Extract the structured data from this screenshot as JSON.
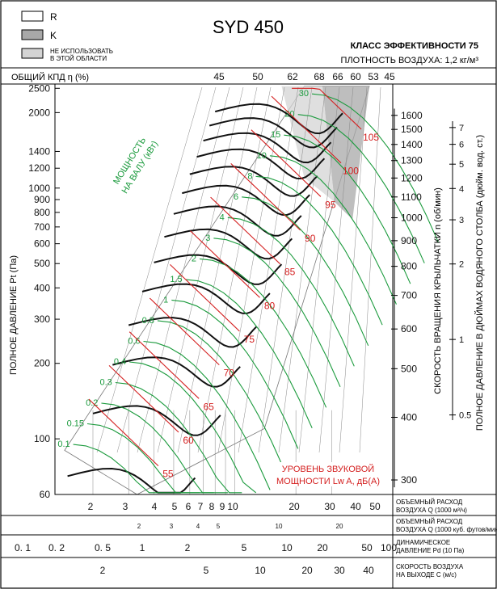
{
  "title": "SYD 450",
  "legend": [
    {
      "key": "R",
      "label": "R",
      "fill": "#ffffff"
    },
    {
      "key": "K",
      "label": "K",
      "fill": "#a8a8a8"
    },
    {
      "key": "na",
      "label_lines": [
        "НЕ ИСПОЛЬЗОВАТЬ",
        "В ЭТОЙ ОБЛАСТИ"
      ],
      "fill": "#d4d4d4"
    }
  ],
  "efficiency_class": "КЛАСС ЭФФЕКТИВНОСТИ 75",
  "air_density": "ПЛОТНОСТЬ ВОЗДУХА: 1,2 кг/м³",
  "efficiency_axis_label": "ОБЩИЙ КПД η (%)",
  "efficiency_ticks": [
    "45",
    "50",
    "62",
    "68",
    "66",
    "60",
    "53",
    "45"
  ],
  "left_axis_label": "ПОЛНОЕ ДАВЛЕНИЕ Pt (Па)",
  "left_ticks": [
    "2500",
    "2000",
    "1400",
    "1200",
    "1000",
    "900",
    "800",
    "700",
    "600",
    "500",
    "400",
    "300",
    "200",
    "100",
    "60"
  ],
  "right_axis_label": "СКОРОСТЬ ВРАЩЕНИЯ КРЫЛЬЧАТКИ n (об/мин)",
  "right_ticks": [
    "1600",
    "1500",
    "1400",
    "1300",
    "1200",
    "1100",
    "1000",
    "900",
    "800",
    "700",
    "600",
    "500",
    "400",
    "300"
  ],
  "far_right_axis_label": "ПОЛНОЕ ДАВЛЕНИЕ В ДЮЙМАХ ВОДЯНОГО СТОЛБА (дюйм. вод. ст.)",
  "far_right_ticks": [
    "7",
    "6",
    "5",
    "4",
    "3",
    "2",
    "1",
    "0.5"
  ],
  "power_label_lines": [
    "МОЩНОСТЬ",
    "НА ВАЛУ (кВт)"
  ],
  "power_labels": [
    "0.1",
    "0.15",
    "0.2",
    "0.3",
    "0.4",
    "0.6",
    "0.8",
    "1",
    "1.5",
    "2",
    "3",
    "4",
    "6",
    "8",
    "10",
    "15",
    "20",
    "30"
  ],
  "sound_label_lines": [
    "УРОВЕНЬ ЗВУКОВОЙ",
    "МОЩНОСТИ Lw A, дБ(A)"
  ],
  "sound_labels": [
    "55",
    "60",
    "65",
    "70",
    "75",
    "80",
    "85",
    "90",
    "95",
    "100",
    "105"
  ],
  "bottom_scales": [
    {
      "label_lines": [
        "ОБЪЕМНЫЙ РАСХОД",
        "ВОЗДУХА Q (1000 м³/ч)"
      ],
      "ticks": [
        "2",
        "3",
        "4",
        "5",
        "6",
        "7",
        "8",
        "9",
        "10",
        "20",
        "30",
        "40",
        "50"
      ]
    },
    {
      "label_lines": [
        "ОБЪЕМНЫЙ РАСХОД",
        "ВОЗДУХА Q (1000 куб. футов/мин)"
      ],
      "ticks": [
        "2",
        "3",
        "4",
        "5",
        "10",
        "20"
      ]
    },
    {
      "label_lines": [
        "ДИНАМИЧЕСКОЕ",
        "ДАВЛЕНИЕ Pd (10 Па)"
      ],
      "ticks": [
        "0. 1",
        "0. 2",
        "0. 5",
        "1",
        "2",
        "5",
        "10",
        "20",
        "50",
        "100"
      ]
    },
    {
      "label_lines": [
        "СКОРОСТЬ ВОЗДУХА",
        "НА ВЫХОДЕ C (м/с)"
      ],
      "ticks": [
        "2",
        "5",
        "10",
        "20",
        "30",
        "40"
      ]
    }
  ],
  "chart_data": {
    "type": "line",
    "title": "SYD 450",
    "xlabel": "ОБЪЕМНЫЙ РАСХОД ВОЗДУХА Q (1000 м³/ч)",
    "ylabel": "ПОЛНОЕ ДАВЛЕНИЕ Pt (Па)",
    "y2label": "СКОРОСТЬ ВРАЩЕНИЯ КРЫЛЬЧАТКИ n (об/мин)",
    "x_scale": "log",
    "y_scale": "log",
    "xlim": [
      1.3,
      60
    ],
    "ylim": [
      60,
      2600
    ],
    "colors": {
      "speed_curves": "#111111",
      "power_curves": "#1a9a3c",
      "sound_curves": "#d42020",
      "k_zone": "#a8a8a8",
      "na_zone": "#d4d4d4"
    },
    "speed_rpm": [
      300,
      400,
      500,
      600,
      700,
      800,
      900,
      1000,
      1100,
      1200,
      1300,
      1400,
      1500,
      1600
    ],
    "power_kw": [
      0.1,
      0.15,
      0.2,
      0.3,
      0.4,
      0.6,
      0.8,
      1,
      1.5,
      2,
      3,
      4,
      6,
      8,
      10,
      15,
      20,
      30
    ],
    "sound_dba": [
      55,
      60,
      65,
      70,
      75,
      80,
      85,
      90,
      95,
      100,
      105
    ],
    "efficiency_pct": [
      45,
      50,
      62,
      68,
      66,
      60,
      53,
      45
    ],
    "series": [
      {
        "name": "n = 1600",
        "x": [
          8,
          12,
          16,
          20,
          25,
          30,
          34
        ],
        "y": [
          1950,
          2050,
          2000,
          2100,
          2250,
          2250,
          2100
        ]
      },
      {
        "name": "n = 300",
        "x": [
          2.5,
          4,
          6,
          8,
          10
        ],
        "y": [
          92,
          120,
          135,
          115,
          90
        ]
      }
    ]
  }
}
